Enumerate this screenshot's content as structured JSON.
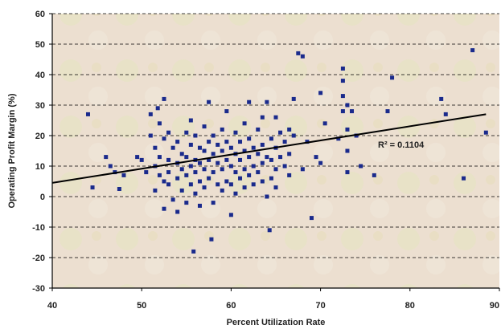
{
  "chart_data": {
    "type": "scatter",
    "title": "",
    "xlabel": "Percent Utilization Rate",
    "ylabel": "Operating Profit Margin (%)",
    "xlim": [
      40,
      90
    ],
    "ylim": [
      -30,
      60
    ],
    "xticks": [
      40,
      50,
      60,
      70,
      80,
      90
    ],
    "yticks": [
      -30,
      -20,
      -10,
      0,
      10,
      20,
      30,
      40,
      50,
      60
    ],
    "grid": "horizontal-dashed",
    "legend": "none",
    "colors": {
      "point": "#1a2a8c",
      "trendline": "#000000",
      "grid": "#000000",
      "plot_background": "#ece0d2"
    },
    "annotation": "R² = 0.1104",
    "trendline": {
      "x": [
        40,
        88.5
      ],
      "y": [
        4.5,
        27
      ]
    },
    "series": [
      {
        "values": [
          [
            44,
            27
          ],
          [
            44.5,
            3
          ],
          [
            46,
            13
          ],
          [
            46.5,
            10
          ],
          [
            47,
            8
          ],
          [
            47.5,
            2.5
          ],
          [
            48,
            7
          ],
          [
            49.5,
            13
          ],
          [
            50,
            12
          ],
          [
            50.5,
            8
          ],
          [
            51,
            27
          ],
          [
            51,
            20
          ],
          [
            51.5,
            16
          ],
          [
            51.5,
            10
          ],
          [
            51.5,
            2
          ],
          [
            51.8,
            29
          ],
          [
            52,
            24
          ],
          [
            52,
            13
          ],
          [
            52,
            7
          ],
          [
            52.5,
            32
          ],
          [
            52.5,
            19
          ],
          [
            52.5,
            5
          ],
          [
            52.5,
            -4
          ],
          [
            53,
            21
          ],
          [
            53,
            12
          ],
          [
            53,
            8
          ],
          [
            53,
            4
          ],
          [
            53.5,
            16
          ],
          [
            53.5,
            -1
          ],
          [
            54,
            18
          ],
          [
            54,
            11
          ],
          [
            54,
            6
          ],
          [
            54,
            -5
          ],
          [
            54.5,
            14
          ],
          [
            54.5,
            9
          ],
          [
            54.5,
            2
          ],
          [
            55,
            21
          ],
          [
            55,
            13
          ],
          [
            55,
            7
          ],
          [
            55,
            -2
          ],
          [
            55.5,
            25
          ],
          [
            55.5,
            17
          ],
          [
            55.5,
            10
          ],
          [
            55.5,
            4
          ],
          [
            55.8,
            -18
          ],
          [
            56,
            20
          ],
          [
            56,
            12
          ],
          [
            56,
            8
          ],
          [
            56,
            1
          ],
          [
            56.5,
            16
          ],
          [
            56.5,
            11
          ],
          [
            56.5,
            5
          ],
          [
            56.5,
            -3
          ],
          [
            57,
            23
          ],
          [
            57,
            15
          ],
          [
            57,
            9
          ],
          [
            57,
            3
          ],
          [
            57.5,
            31
          ],
          [
            57.5,
            18
          ],
          [
            57.5,
            12
          ],
          [
            57.5,
            6
          ],
          [
            57.8,
            -14
          ],
          [
            58,
            20
          ],
          [
            58,
            14
          ],
          [
            58,
            8
          ],
          [
            58,
            -2
          ],
          [
            58.5,
            17
          ],
          [
            58.5,
            11
          ],
          [
            58.5,
            4
          ],
          [
            59,
            22
          ],
          [
            59,
            15
          ],
          [
            59,
            9
          ],
          [
            59,
            2
          ],
          [
            59.5,
            28
          ],
          [
            59.5,
            18
          ],
          [
            59.5,
            12
          ],
          [
            59.5,
            5
          ],
          [
            60,
            16
          ],
          [
            60,
            10
          ],
          [
            60,
            4
          ],
          [
            60,
            -6
          ],
          [
            60.5,
            21
          ],
          [
            60.5,
            14
          ],
          [
            60.5,
            8
          ],
          [
            60.5,
            1
          ],
          [
            61,
            18
          ],
          [
            61,
            12
          ],
          [
            61,
            6
          ],
          [
            61.5,
            24
          ],
          [
            61.5,
            15
          ],
          [
            61.5,
            9
          ],
          [
            61.5,
            3
          ],
          [
            62,
            31
          ],
          [
            62,
            19
          ],
          [
            62,
            13
          ],
          [
            62,
            7
          ],
          [
            62.5,
            16
          ],
          [
            62.5,
            10
          ],
          [
            62.5,
            4
          ],
          [
            63,
            22
          ],
          [
            63,
            14
          ],
          [
            63,
            8
          ],
          [
            63.5,
            26
          ],
          [
            63.5,
            17
          ],
          [
            63.5,
            11
          ],
          [
            63.5,
            5
          ],
          [
            64,
            31
          ],
          [
            64,
            13
          ],
          [
            64,
            0
          ],
          [
            64.3,
            -11
          ],
          [
            64.5,
            19
          ],
          [
            64.5,
            12
          ],
          [
            64.5,
            6
          ],
          [
            65,
            26
          ],
          [
            65,
            16
          ],
          [
            65,
            9
          ],
          [
            65,
            3
          ],
          [
            65.5,
            21
          ],
          [
            65.5,
            13
          ],
          [
            66,
            18
          ],
          [
            66,
            10
          ],
          [
            66.5,
            22
          ],
          [
            66.5,
            14
          ],
          [
            66.5,
            7
          ],
          [
            67,
            32
          ],
          [
            67,
            20
          ],
          [
            67.5,
            47
          ],
          [
            68,
            46
          ],
          [
            68,
            9
          ],
          [
            68.5,
            18
          ],
          [
            69,
            -7
          ],
          [
            69.5,
            13
          ],
          [
            70,
            34
          ],
          [
            70,
            11
          ],
          [
            70.5,
            24
          ],
          [
            72,
            19
          ],
          [
            72.5,
            42
          ],
          [
            72.5,
            38
          ],
          [
            72.5,
            33
          ],
          [
            72.5,
            28
          ],
          [
            73,
            30
          ],
          [
            73,
            22
          ],
          [
            73,
            15
          ],
          [
            73,
            8
          ],
          [
            73.5,
            28
          ],
          [
            74,
            20
          ],
          [
            74.5,
            10
          ],
          [
            76,
            7
          ],
          [
            77.5,
            28
          ],
          [
            78,
            39
          ],
          [
            83.5,
            32
          ],
          [
            84,
            27
          ],
          [
            86,
            6
          ],
          [
            87,
            48
          ],
          [
            88.5,
            21
          ]
        ]
      }
    ]
  }
}
